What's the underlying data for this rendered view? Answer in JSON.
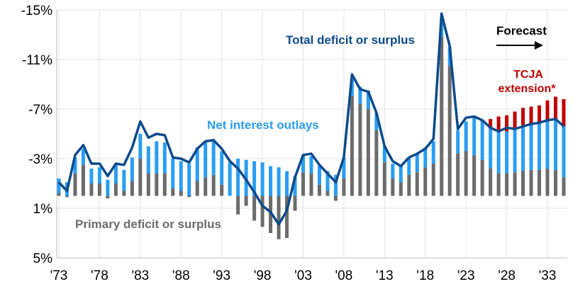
{
  "chart_data": {
    "type": "bar",
    "y_axis": {
      "min": -15,
      "max": 5,
      "inverted": true,
      "ticks": [
        -15,
        -11,
        -7,
        -3,
        1,
        5
      ],
      "tick_labels": [
        "-15%",
        "-11%",
        "-7%",
        "-3%",
        "1%",
        "5%"
      ]
    },
    "x_axis": {
      "first_year": 1973,
      "last_year": 2035,
      "tick_years": [
        1973,
        1978,
        1983,
        1988,
        1993,
        1998,
        2003,
        2008,
        2013,
        2018,
        2023,
        2028,
        2033
      ],
      "tick_labels": [
        "'73",
        "'78",
        "'83",
        "'88",
        "'93",
        "'98",
        "'03",
        "'08",
        "'13",
        "'18",
        "'23",
        "'28",
        "'33"
      ]
    },
    "grid": true,
    "legend": "none",
    "years": [
      1973,
      1974,
      1975,
      1976,
      1977,
      1978,
      1979,
      1980,
      1981,
      1982,
      1983,
      1984,
      1985,
      1986,
      1987,
      1988,
      1989,
      1990,
      1991,
      1992,
      1993,
      1994,
      1995,
      1996,
      1997,
      1998,
      1999,
      2000,
      2001,
      2002,
      2003,
      2004,
      2005,
      2006,
      2007,
      2008,
      2009,
      2010,
      2011,
      2012,
      2013,
      2014,
      2015,
      2016,
      2017,
      2018,
      2019,
      2020,
      2021,
      2022,
      2023,
      2024,
      2025,
      2026,
      2027,
      2028,
      2029,
      2030,
      2031,
      2032,
      2033,
      2034,
      2035
    ],
    "primary_deficit_or_surplus": [
      -0.2,
      0.1,
      -1.8,
      -2.5,
      -1.0,
      -1.0,
      0.2,
      -1.0,
      -0.4,
      -1.2,
      -3.0,
      -1.8,
      -1.8,
      -1.8,
      -0.6,
      -0.4,
      0.1,
      -1.2,
      -1.5,
      -1.7,
      -0.9,
      0.0,
      1.5,
      0.8,
      2.0,
      2.5,
      3.0,
      3.5,
      3.4,
      1.2,
      -1.9,
      -1.8,
      -0.9,
      -0.4,
      0.4,
      -1.4,
      -8.1,
      -7.4,
      -7.0,
      -5.3,
      -2.7,
      -1.4,
      -1.1,
      -1.7,
      -1.9,
      -2.3,
      -2.6,
      -12.8,
      -10.5,
      -3.4,
      -3.6,
      -3.3,
      -2.9,
      -2.2,
      -1.8,
      -1.8,
      -1.9,
      -2.0,
      -2.1,
      -2.1,
      -2.2,
      -2.1,
      -1.5
    ],
    "net_interest_outlays": [
      -1.2,
      -1.1,
      -1.3,
      -1.3,
      -1.2,
      -1.3,
      -1.3,
      -1.5,
      -1.7,
      -1.9,
      -2.0,
      -2.2,
      -2.6,
      -2.5,
      -2.4,
      -2.4,
      -2.6,
      -2.7,
      -2.8,
      -2.7,
      -2.7,
      -2.7,
      -3.0,
      -2.9,
      -2.8,
      -2.7,
      -2.4,
      -2.3,
      -2.0,
      -1.6,
      -1.4,
      -1.4,
      -1.5,
      -1.6,
      -1.7,
      -1.7,
      -1.3,
      -1.4,
      -1.5,
      -1.4,
      -1.3,
      -1.2,
      -1.3,
      -1.4,
      -1.5,
      -1.6,
      -1.8,
      -1.6,
      -1.5,
      -1.9,
      -2.4,
      -3.1,
      -3.2,
      -3.3,
      -3.4,
      -3.4,
      -3.5,
      -3.6,
      -3.7,
      -3.8,
      -3.9,
      -4.0,
      -4.1
    ],
    "total_deficit_or_surplus": [
      -1.1,
      -0.4,
      -3.3,
      -4.1,
      -2.6,
      -2.6,
      -1.6,
      -2.6,
      -2.5,
      -3.9,
      -6.0,
      -4.7,
      -5.0,
      -4.9,
      -3.1,
      -3.0,
      -2.7,
      -3.8,
      -4.4,
      -4.5,
      -3.8,
      -2.8,
      -2.2,
      -1.3,
      -0.3,
      0.8,
      1.3,
      2.3,
      1.2,
      -1.5,
      -3.3,
      -3.4,
      -2.5,
      -1.8,
      -1.1,
      -3.1,
      -9.8,
      -8.6,
      -8.4,
      -6.7,
      -4.0,
      -2.8,
      -2.4,
      -3.1,
      -3.4,
      -3.8,
      -4.6,
      -14.7,
      -12.1,
      -5.4,
      -6.3,
      -6.4,
      -6.1,
      -5.5,
      -5.2,
      -5.5,
      -5.4,
      -5.6,
      -5.8,
      -5.9,
      -6.1,
      -6.2,
      -5.6
    ],
    "tcja_extension": [
      0,
      0,
      0,
      0,
      0,
      0,
      0,
      0,
      0,
      0,
      0,
      0,
      0,
      0,
      0,
      0,
      0,
      0,
      0,
      0,
      0,
      0,
      0,
      0,
      0,
      0,
      0,
      0,
      0,
      0,
      0,
      0,
      0,
      0,
      0,
      0,
      0,
      0,
      0,
      0,
      0,
      0,
      0,
      0,
      0,
      0,
      0,
      0,
      0,
      0,
      0,
      0,
      0,
      -0.7,
      -1.2,
      -1.3,
      -1.4,
      -1.5,
      -1.4,
      -1.4,
      -1.6,
      -1.9,
      -2.2
    ],
    "colors": {
      "primary": "#6b6b6b",
      "interest": "#2a9df4",
      "tcja": "#c00000",
      "total_line": "#0b4a8c",
      "grid": "#e3e3e3"
    },
    "annotations": {
      "total": "Total deficit or surplus",
      "interest": "Net interest outlays",
      "primary": "Primary deficit or surplus",
      "forecast": "Forecast",
      "tcja_line1": "TCJA",
      "tcja_line2": "extension*"
    }
  }
}
